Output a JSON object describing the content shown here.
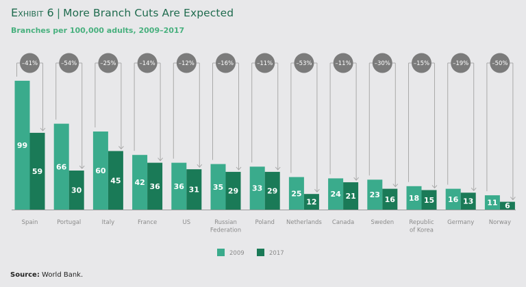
{
  "header": {
    "exhibit_label": "Exhibit 6",
    "separator": "|",
    "title": "More Branch Cuts Are Expected",
    "subtitle": "Branches per 100,000 adults, 2009–2017"
  },
  "colors": {
    "series_2009": "#3aab8c",
    "series_2017": "#1a7a57",
    "badge": "#7b7b7b",
    "connector": "#a9a9a9",
    "title": "#1f6b4e",
    "subtitle": "#48b07e"
  },
  "chart_data": {
    "type": "bar",
    "title": "More Branch Cuts Are Expected",
    "subtitle": "Branches per 100,000 adults, 2009–2017",
    "xlabel": "",
    "ylabel": "Branches per 100,000 adults",
    "ylim": [
      0,
      100
    ],
    "grid": false,
    "legend_position": "bottom-center",
    "categories": [
      "Spain",
      "Portugal",
      "Italy",
      "France",
      "US",
      "Russian Federation",
      "Poland",
      "Netherlands",
      "Canada",
      "Sweden",
      "Republic of Korea",
      "Germany",
      "Norway"
    ],
    "category_lines": [
      [
        "Spain"
      ],
      [
        "Portugal"
      ],
      [
        "Italy"
      ],
      [
        "France"
      ],
      [
        "US"
      ],
      [
        "Russian",
        "Federation"
      ],
      [
        "Poland"
      ],
      [
        "Netherlands"
      ],
      [
        "Canada"
      ],
      [
        "Sweden"
      ],
      [
        "Republic",
        "of Korea"
      ],
      [
        "Germany"
      ],
      [
        "Norway"
      ]
    ],
    "series": [
      {
        "name": "2009",
        "values": [
          99,
          66,
          60,
          42,
          36,
          35,
          33,
          25,
          24,
          23,
          18,
          16,
          11
        ]
      },
      {
        "name": "2017",
        "values": [
          59,
          30,
          45,
          36,
          31,
          29,
          29,
          12,
          21,
          16,
          15,
          13,
          6
        ]
      }
    ],
    "annotations": [
      "–41%",
      "–54%",
      "–25%",
      "–14%",
      "–12%",
      "–16%",
      "–11%",
      "–53%",
      "–11%",
      "–30%",
      "–15%",
      "–19%",
      "–50%"
    ]
  },
  "legend": {
    "items": [
      {
        "label": "2009"
      },
      {
        "label": "2017"
      }
    ]
  },
  "source": {
    "label": "Source:",
    "text": " World Bank."
  }
}
